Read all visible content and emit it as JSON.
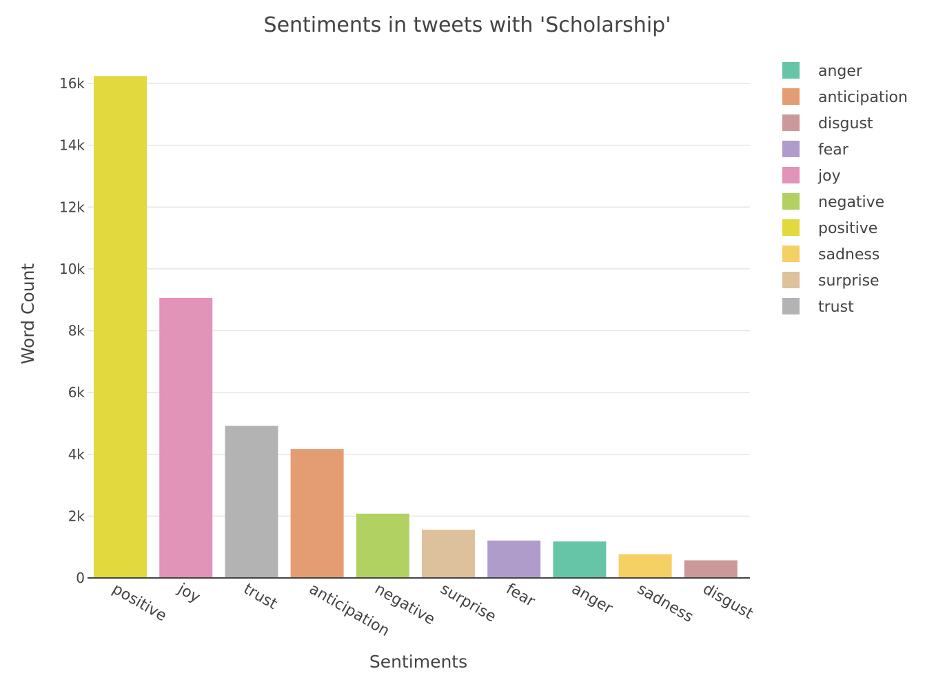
{
  "chart_data": {
    "type": "bar",
    "title": "Sentiments in tweets with 'Scholarship'",
    "xlabel": "Sentiments",
    "ylabel": "Word Count",
    "ylim": [
      0,
      16500
    ],
    "yticks": [
      0,
      2000,
      4000,
      6000,
      8000,
      10000,
      12000,
      14000,
      16000
    ],
    "ytick_labels": [
      "0",
      "2k",
      "4k",
      "6k",
      "8k",
      "10k",
      "12k",
      "14k",
      "16k"
    ],
    "grid": true,
    "legend_position": "right",
    "categories": [
      "positive",
      "joy",
      "trust",
      "anticipation",
      "negative",
      "surprise",
      "fear",
      "anger",
      "sadness",
      "disgust"
    ],
    "values": [
      16240,
      9060,
      4920,
      4170,
      2080,
      1560,
      1210,
      1180,
      770,
      570
    ],
    "colors": {
      "anger": "#66c5a6",
      "anticipation": "#e49d72",
      "disgust": "#cc9899",
      "fear": "#b09ccb",
      "joy": "#e193b8",
      "negative": "#b1d262",
      "positive": "#e2d93e",
      "sadness": "#f5d064",
      "surprise": "#dcc19c",
      "trust": "#b3b3b3"
    },
    "legend": [
      "anger",
      "anticipation",
      "disgust",
      "fear",
      "joy",
      "negative",
      "positive",
      "sadness",
      "surprise",
      "trust"
    ]
  }
}
